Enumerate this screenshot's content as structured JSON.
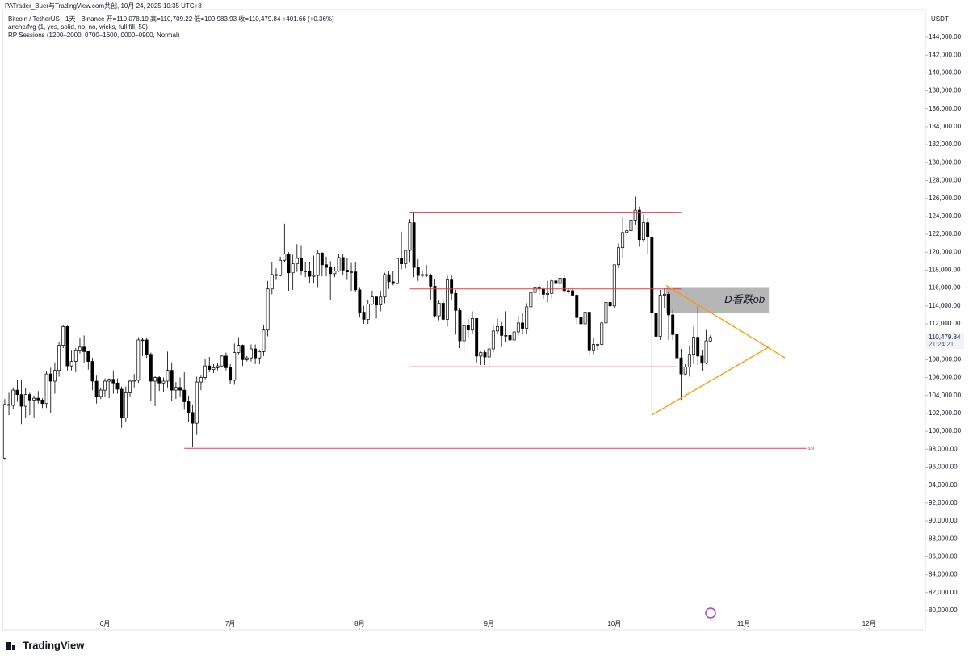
{
  "chart_data": {
    "type": "candlestick",
    "title": "PATrader_Buer与TradingView.com共创, 10月 24, 2025 10:35 UTC+8",
    "subtitle": "Bitcoin / TetherUS · 1天 · Binance  开=110,078.19  高=110,709.22  低=109,983.93  收=110,479.84  +401.66 (+0.36%)",
    "indicators": [
      "anche/fvg (1, yes, solid, no, no, wicks, full fill, 50)",
      "RP Sessions (1200–2000, 0700–1600, 0000–0900, Normal)"
    ],
    "currency": "USDT",
    "last_price_label": "110,479.84",
    "countdown": "21:24:21",
    "brand": "TradingView",
    "up_color": "#ffffff",
    "down_color": "#000000",
    "grid": false,
    "xlim": [
      -0.5,
      220.5
    ],
    "xticks": [
      {
        "value": 24,
        "label": "6月"
      },
      {
        "value": 54,
        "label": "7月"
      },
      {
        "value": 85,
        "label": "8月"
      },
      {
        "value": 116,
        "label": "9月"
      },
      {
        "value": 146,
        "label": "10月"
      },
      {
        "value": 177,
        "label": "11月"
      },
      {
        "value": 207,
        "label": "12月"
      }
    ],
    "ylim": [
      79000,
      147000
    ],
    "yticks": [
      {
        "value": 80000,
        "label": "80,000.00"
      },
      {
        "value": 82000,
        "label": "82,000.00"
      },
      {
        "value": 84000,
        "label": "84,000.00"
      },
      {
        "value": 86000,
        "label": "86,000.00"
      },
      {
        "value": 88000,
        "label": "88,000.00"
      },
      {
        "value": 90000,
        "label": "90,000.00"
      },
      {
        "value": 92000,
        "label": "92,000.00"
      },
      {
        "value": 94000,
        "label": "94,000.00"
      },
      {
        "value": 96000,
        "label": "96,000.00"
      },
      {
        "value": 98000,
        "label": "98,000.00"
      },
      {
        "value": 100000,
        "label": "100,000.00"
      },
      {
        "value": 102000,
        "label": "102,000.00"
      },
      {
        "value": 104000,
        "label": "104,000.00"
      },
      {
        "value": 106000,
        "label": "106,000.00"
      },
      {
        "value": 108000,
        "label": "108,000.00"
      },
      {
        "value": 110000,
        "label": "110,000.00"
      },
      {
        "value": 112000,
        "label": "112,000.00"
      },
      {
        "value": 114000,
        "label": "114,000.00"
      },
      {
        "value": 116000,
        "label": "116,000.00"
      },
      {
        "value": 118000,
        "label": "118,000.00"
      },
      {
        "value": 120000,
        "label": "120,000.00"
      },
      {
        "value": 122000,
        "label": "122,000.00"
      },
      {
        "value": 124000,
        "label": "124,000.00"
      },
      {
        "value": 126000,
        "label": "126,000.00"
      },
      {
        "value": 128000,
        "label": "128,000.00"
      },
      {
        "value": 130000,
        "label": "130,000.00"
      },
      {
        "value": 132000,
        "label": "132,000.00"
      },
      {
        "value": 134000,
        "label": "134,000.00"
      },
      {
        "value": 136000,
        "label": "136,000.00"
      },
      {
        "value": 138000,
        "label": "138,000.00"
      },
      {
        "value": 140000,
        "label": "140,000.00"
      },
      {
        "value": 142000,
        "label": "142,000.00"
      },
      {
        "value": 144000,
        "label": "144,000.00"
      }
    ],
    "ohlc": [
      [
        97000,
        103600,
        96900,
        103000
      ],
      [
        103000,
        104300,
        101800,
        102900
      ],
      [
        102900,
        104900,
        102500,
        104600
      ],
      [
        104600,
        105700,
        103300,
        104100
      ],
      [
        104100,
        105800,
        100800,
        102800
      ],
      [
        102800,
        104800,
        101500,
        104100
      ],
      [
        104100,
        104300,
        101800,
        103500
      ],
      [
        103500,
        104000,
        101500,
        103700
      ],
      [
        103700,
        104500,
        103100,
        103500
      ],
      [
        103500,
        103700,
        102600,
        103100
      ],
      [
        103100,
        106700,
        102600,
        106400
      ],
      [
        106400,
        107100,
        102000,
        105600
      ],
      [
        105600,
        107700,
        104200,
        106800
      ],
      [
        106800,
        110000,
        106100,
        109600
      ],
      [
        109600,
        111900,
        109300,
        111700
      ],
      [
        111700,
        111800,
        106800,
        107300
      ],
      [
        107300,
        109000,
        106800,
        107800
      ],
      [
        107800,
        109300,
        106600,
        109000
      ],
      [
        109000,
        110400,
        108700,
        109400
      ],
      [
        109400,
        110700,
        107600,
        108900
      ],
      [
        108900,
        108900,
        106900,
        107800
      ],
      [
        107800,
        108200,
        104600,
        105600
      ],
      [
        105600,
        106300,
        103100,
        103900
      ],
      [
        103900,
        104900,
        103600,
        104600
      ],
      [
        104600,
        105900,
        103900,
        105600
      ],
      [
        105600,
        105900,
        103700,
        105800
      ],
      [
        105800,
        106800,
        104200,
        105400
      ],
      [
        105400,
        105900,
        104200,
        104700
      ],
      [
        104700,
        105000,
        100400,
        101500
      ],
      [
        101500,
        105000,
        101100,
        104300
      ],
      [
        104300,
        105800,
        103900,
        105600
      ],
      [
        105600,
        106400,
        104900,
        105700
      ],
      [
        105700,
        110500,
        105400,
        110200
      ],
      [
        110200,
        110400,
        108400,
        110200
      ],
      [
        110200,
        110400,
        108200,
        108600
      ],
      [
        108600,
        108800,
        103400,
        105600
      ],
      [
        105600,
        106200,
        102800,
        106000
      ],
      [
        106000,
        106200,
        104500,
        105400
      ],
      [
        105400,
        106000,
        104400,
        105600
      ],
      [
        105600,
        108900,
        104900,
        106800
      ],
      [
        106800,
        107700,
        103400,
        104600
      ],
      [
        104600,
        105500,
        103600,
        104900
      ],
      [
        104900,
        106000,
        103900,
        104600
      ],
      [
        104600,
        106600,
        102400,
        103300
      ],
      [
        103300,
        104000,
        101000,
        102100
      ],
      [
        102100,
        103000,
        98200,
        100900
      ],
      [
        100900,
        106100,
        99600,
        105500
      ],
      [
        105500,
        106300,
        104600,
        106000
      ],
      [
        106000,
        108100,
        105800,
        107300
      ],
      [
        107300,
        108300,
        106600,
        106900
      ],
      [
        106900,
        107500,
        106500,
        107100
      ],
      [
        107100,
        107600,
        106800,
        107300
      ],
      [
        107300,
        108500,
        107200,
        108400
      ],
      [
        108400,
        108800,
        106800,
        107100
      ],
      [
        107100,
        107500,
        105300,
        105700
      ],
      [
        105700,
        109800,
        105200,
        108800
      ],
      [
        108800,
        110500,
        108600,
        109600
      ],
      [
        109600,
        109700,
        107300,
        108000
      ],
      [
        108000,
        108400,
        107800,
        108200
      ],
      [
        108200,
        109700,
        107800,
        109200
      ],
      [
        109200,
        109700,
        107500,
        108200
      ],
      [
        108200,
        109000,
        107500,
        108900
      ],
      [
        108900,
        111900,
        108400,
        111300
      ],
      [
        111300,
        116800,
        110600,
        115900
      ],
      [
        115900,
        118900,
        115300,
        117500
      ],
      [
        117500,
        118200,
        116900,
        117400
      ],
      [
        117400,
        119500,
        117300,
        119100
      ],
      [
        119100,
        123200,
        118900,
        119800
      ],
      [
        119800,
        120000,
        115700,
        117700
      ],
      [
        117700,
        119700,
        115800,
        118700
      ],
      [
        118700,
        120900,
        117800,
        119300
      ],
      [
        119300,
        120800,
        117400,
        117900
      ],
      [
        117900,
        118900,
        117200,
        117900
      ],
      [
        117900,
        118900,
        116500,
        117300
      ],
      [
        117300,
        119600,
        116500,
        117400
      ],
      [
        117400,
        120200,
        116100,
        119900
      ],
      [
        119900,
        120000,
        117300,
        118600
      ],
      [
        118600,
        119500,
        117300,
        118300
      ],
      [
        118300,
        119000,
        114700,
        117600
      ],
      [
        117600,
        118400,
        117200,
        117900
      ],
      [
        117900,
        119800,
        117800,
        119400
      ],
      [
        119400,
        119800,
        117400,
        118000
      ],
      [
        118000,
        119300,
        116900,
        117800
      ],
      [
        117800,
        118800,
        115700,
        117800
      ],
      [
        117800,
        118900,
        115600,
        115800
      ],
      [
        115800,
        116100,
        112700,
        113300
      ],
      [
        113300,
        114000,
        112000,
        112500
      ],
      [
        112500,
        114700,
        112000,
        114200
      ],
      [
        114200,
        115700,
        114100,
        115000
      ],
      [
        115000,
        115100,
        112600,
        114100
      ],
      [
        114100,
        115700,
        113400,
        115000
      ],
      [
        115000,
        117700,
        114300,
        117500
      ],
      [
        117500,
        117900,
        115900,
        116700
      ],
      [
        116700,
        117900,
        116300,
        116500
      ],
      [
        116500,
        119300,
        116500,
        119300
      ],
      [
        119300,
        122300,
        118100,
        118700
      ],
      [
        118700,
        120300,
        118200,
        120200
      ],
      [
        120200,
        123700,
        118900,
        123300
      ],
      [
        123300,
        124500,
        117200,
        118300
      ],
      [
        118300,
        119200,
        116800,
        117400
      ],
      [
        117400,
        118000,
        117200,
        117500
      ],
      [
        117500,
        118600,
        117200,
        117400
      ],
      [
        117400,
        117600,
        114700,
        116200
      ],
      [
        116200,
        117000,
        112700,
        112900
      ],
      [
        112900,
        114600,
        112400,
        114300
      ],
      [
        114300,
        114800,
        112400,
        112500
      ],
      [
        112500,
        117400,
        111700,
        116900
      ],
      [
        116900,
        117400,
        114700,
        115400
      ],
      [
        115400,
        115800,
        110800,
        113500
      ],
      [
        113500,
        113800,
        109300,
        110100
      ],
      [
        110100,
        112400,
        108700,
        111800
      ],
      [
        111800,
        112600,
        110500,
        111300
      ],
      [
        111300,
        113400,
        110900,
        112600
      ],
      [
        112600,
        112600,
        107600,
        108400
      ],
      [
        108400,
        108900,
        107400,
        108800
      ],
      [
        108800,
        109000,
        107400,
        108300
      ],
      [
        108300,
        109900,
        107300,
        109200
      ],
      [
        109200,
        111800,
        108800,
        111200
      ],
      [
        111200,
        112600,
        110800,
        111700
      ],
      [
        111700,
        112200,
        109400,
        110700
      ],
      [
        110700,
        113400,
        110000,
        110700
      ],
      [
        110700,
        111000,
        110200,
        110200
      ],
      [
        110200,
        111300,
        110000,
        111100
      ],
      [
        111100,
        112900,
        110700,
        112100
      ],
      [
        112100,
        113200,
        110800,
        111500
      ],
      [
        111500,
        114300,
        110900,
        113900
      ],
      [
        113900,
        115600,
        113300,
        115500
      ],
      [
        115500,
        116600,
        114800,
        116100
      ],
      [
        116100,
        116400,
        115200,
        115900
      ],
      [
        115900,
        116100,
        114800,
        115300
      ],
      [
        115300,
        116800,
        114400,
        115400
      ],
      [
        115400,
        117000,
        114800,
        116800
      ],
      [
        116800,
        117300,
        114800,
        116500
      ],
      [
        116500,
        117900,
        116100,
        117100
      ],
      [
        117100,
        117400,
        115400,
        115700
      ],
      [
        115700,
        116000,
        115400,
        115700
      ],
      [
        115700,
        116100,
        115100,
        115200
      ],
      [
        115200,
        115400,
        112000,
        112700
      ],
      [
        112700,
        113300,
        111100,
        112000
      ],
      [
        112000,
        114000,
        111100,
        113300
      ],
      [
        113300,
        113400,
        108600,
        109000
      ],
      [
        109000,
        110400,
        108600,
        109700
      ],
      [
        109700,
        109800,
        109100,
        109700
      ],
      [
        109700,
        112300,
        109300,
        112100
      ],
      [
        112100,
        114800,
        111600,
        114400
      ],
      [
        114400,
        114900,
        112700,
        114000
      ],
      [
        114000,
        118600,
        113800,
        118600
      ],
      [
        118600,
        121000,
        118200,
        120500
      ],
      [
        120500,
        123900,
        119300,
        122200
      ],
      [
        122200,
        122900,
        121600,
        122400
      ],
      [
        122400,
        125700,
        122100,
        123500
      ],
      [
        123500,
        126200,
        123100,
        124700
      ],
      [
        124700,
        125100,
        120600,
        121400
      ],
      [
        121400,
        124200,
        121100,
        123300
      ],
      [
        123300,
        123800,
        119800,
        121700
      ],
      [
        121700,
        122500,
        102000,
        113200
      ],
      [
        113200,
        113800,
        109700,
        110600
      ],
      [
        110600,
        115800,
        110200,
        115200
      ],
      [
        115200,
        116000,
        113800,
        115300
      ],
      [
        115300,
        115600,
        110200,
        113000
      ],
      [
        113000,
        113600,
        110200,
        110800
      ],
      [
        110800,
        111900,
        107500,
        108200
      ],
      [
        108200,
        109200,
        103500,
        106400
      ],
      [
        106400,
        107500,
        106300,
        107200
      ],
      [
        107200,
        109500,
        106100,
        108600
      ],
      [
        108600,
        111700,
        107500,
        110500
      ],
      [
        110500,
        114000,
        107400,
        108400
      ],
      [
        108400,
        109100,
        106700,
        107600
      ],
      [
        107600,
        111300,
        107500,
        110100
      ],
      [
        110078.19,
        110709.22,
        109983.93,
        110479.84
      ]
    ],
    "hlines": [
      {
        "value": 124400,
        "from": 97,
        "to": 162,
        "color": "#f23645"
      },
      {
        "value": 115900,
        "from": 97,
        "to": 162,
        "color": "#f23645"
      },
      {
        "value": 107200,
        "from": 97,
        "to": 161,
        "color": "#f23645"
      },
      {
        "value": 98100,
        "from": 43,
        "to": 192,
        "color": "#f23645",
        "label": "ssl"
      }
    ],
    "trendlines": [
      {
        "points": [
          [
            158.4,
            116300
          ],
          [
            186.9,
            108200
          ]
        ],
        "color": "#ff9800"
      },
      {
        "points": [
          [
            154.9,
            101800
          ],
          [
            183,
            109400
          ]
        ],
        "color": "#ff9800"
      }
    ],
    "box": {
      "x": [
        158.4,
        183
      ],
      "y": [
        113200,
        116100
      ],
      "color": "#9e9e9e",
      "label": "D看跌ob"
    }
  }
}
